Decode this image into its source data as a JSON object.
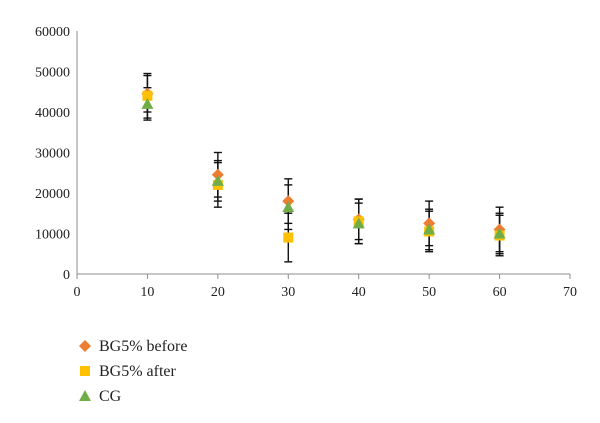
{
  "chart_data": {
    "type": "scatter",
    "title": "",
    "xlabel": "",
    "ylabel": "",
    "xlim": [
      0,
      70
    ],
    "ylim": [
      0,
      60000
    ],
    "x_ticks": [
      0,
      10,
      20,
      30,
      40,
      50,
      60,
      70
    ],
    "y_ticks": [
      0,
      10000,
      20000,
      30000,
      40000,
      50000,
      60000
    ],
    "grid": false,
    "legend_position": "bottom-left",
    "series": [
      {
        "name": "BG5% before",
        "marker": "diamond",
        "color": "#ED7D31",
        "points": [
          {
            "x": 10,
            "y": 44500,
            "err": 4500
          },
          {
            "x": 20,
            "y": 24500,
            "err": 5500
          },
          {
            "x": 30,
            "y": 18000,
            "err": 5500
          },
          {
            "x": 40,
            "y": 13500,
            "err": 5000
          },
          {
            "x": 50,
            "y": 12500,
            "err": 5500
          },
          {
            "x": 60,
            "y": 11000,
            "err": 5500
          }
        ]
      },
      {
        "name": "BG5% after",
        "marker": "square",
        "color": "#FFC000",
        "points": [
          {
            "x": 10,
            "y": 44000,
            "err": 5500
          },
          {
            "x": 20,
            "y": 22000,
            "err": 5500
          },
          {
            "x": 30,
            "y": 9000,
            "err": 6000
          },
          {
            "x": 40,
            "y": 13000,
            "err": 5500
          },
          {
            "x": 50,
            "y": 10500,
            "err": 5000
          },
          {
            "x": 60,
            "y": 9500,
            "err": 5000
          }
        ]
      },
      {
        "name": "CG",
        "marker": "triangle",
        "color": "#70AD47",
        "points": [
          {
            "x": 10,
            "y": 42000,
            "err": 4000
          },
          {
            "x": 20,
            "y": 23000,
            "err": 5000
          },
          {
            "x": 30,
            "y": 16500,
            "err": 5500
          },
          {
            "x": 40,
            "y": 12500,
            "err": 5000
          },
          {
            "x": 50,
            "y": 11000,
            "err": 5000
          },
          {
            "x": 60,
            "y": 10000,
            "err": 5000
          }
        ]
      }
    ]
  }
}
